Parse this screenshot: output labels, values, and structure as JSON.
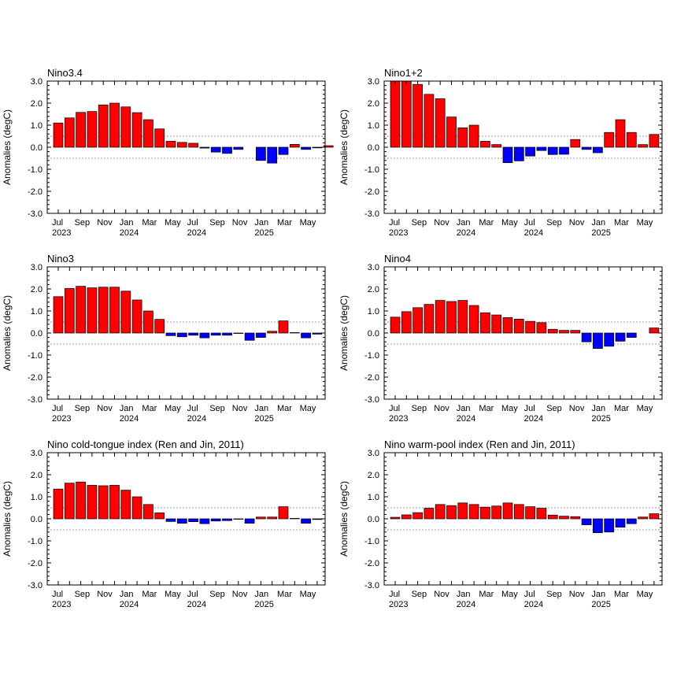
{
  "figure": {
    "background": "#ffffff"
  },
  "colors": {
    "positive": "#ff0000",
    "negative": "#0000ff",
    "threshold_line": "#999999"
  },
  "chart_data": [
    {
      "type": "bar",
      "title": "Nino3.4",
      "ylabel": "Anomalies (degC)",
      "ylim": [
        -3.0,
        3.0
      ],
      "yticks": [
        "3.0",
        "2.0",
        "1.0",
        "0.0",
        "-1.0",
        "-2.0",
        "-3.0"
      ],
      "threshold": [
        0.5,
        -0.5
      ],
      "x_labels": [
        [
          "Jul",
          "2023"
        ],
        [
          "Sep",
          ""
        ],
        [
          "Nov",
          ""
        ],
        [
          "Jan",
          "2024"
        ],
        [
          "Mar",
          ""
        ],
        [
          "May",
          ""
        ],
        [
          "Jul",
          "2024"
        ],
        [
          "Sep",
          ""
        ],
        [
          "Nov",
          ""
        ],
        [
          "Jan",
          "2025"
        ],
        [
          "Mar",
          ""
        ],
        [
          "May",
          ""
        ]
      ],
      "values": [
        1.1,
        1.33,
        1.58,
        1.62,
        1.92,
        2.0,
        1.83,
        1.57,
        1.25,
        0.83,
        0.27,
        0.22,
        0.18,
        -0.04,
        -0.22,
        -0.28,
        -0.1,
        0.0,
        -0.6,
        -0.72,
        -0.33,
        0.13,
        -0.1,
        -0.03,
        0.07
      ]
    },
    {
      "type": "bar",
      "title": "Nino1+2",
      "ylabel": "Anomalies (degC)",
      "ylim": [
        -3.0,
        3.0
      ],
      "yticks": [
        "3.0",
        "2.0",
        "1.0",
        "0.0",
        "-1.0",
        "-2.0",
        "-3.0"
      ],
      "threshold": [
        0.5,
        -0.5
      ],
      "x_labels": [
        [
          "Jul",
          "2023"
        ],
        [
          "Sep",
          ""
        ],
        [
          "Nov",
          ""
        ],
        [
          "Jan",
          "2024"
        ],
        [
          "Mar",
          ""
        ],
        [
          "May",
          ""
        ],
        [
          "Jul",
          "2024"
        ],
        [
          "Sep",
          ""
        ],
        [
          "Nov",
          ""
        ],
        [
          "Jan",
          "2025"
        ],
        [
          "Mar",
          ""
        ],
        [
          "May",
          ""
        ]
      ],
      "values": [
        3.0,
        3.0,
        2.85,
        2.4,
        2.2,
        1.37,
        0.88,
        1.0,
        0.27,
        0.12,
        -0.7,
        -0.62,
        -0.4,
        -0.15,
        -0.33,
        -0.32,
        0.35,
        -0.1,
        -0.25,
        0.67,
        1.25,
        0.67,
        0.12,
        0.58
      ]
    },
    {
      "type": "bar",
      "title": "Nino3",
      "ylabel": "Anomalies (degC)",
      "ylim": [
        -3.0,
        3.0
      ],
      "yticks": [
        "3.0",
        "2.0",
        "1.0",
        "0.0",
        "-1.0",
        "-2.0",
        "-3.0"
      ],
      "threshold": [
        0.5,
        -0.5
      ],
      "x_labels": [
        [
          "Jul",
          "2023"
        ],
        [
          "Sep",
          ""
        ],
        [
          "Nov",
          ""
        ],
        [
          "Jan",
          "2024"
        ],
        [
          "Mar",
          ""
        ],
        [
          "May",
          ""
        ],
        [
          "Jul",
          "2024"
        ],
        [
          "Sep",
          ""
        ],
        [
          "Nov",
          ""
        ],
        [
          "Jan",
          "2025"
        ],
        [
          "Mar",
          ""
        ],
        [
          "May",
          ""
        ]
      ],
      "values": [
        1.65,
        2.02,
        2.12,
        2.05,
        2.08,
        2.08,
        1.9,
        1.5,
        1.0,
        0.62,
        -0.12,
        -0.17,
        -0.1,
        -0.22,
        -0.1,
        -0.1,
        -0.02,
        -0.33,
        -0.2,
        0.08,
        0.55,
        0.02,
        -0.22,
        -0.05
      ]
    },
    {
      "type": "bar",
      "title": "Nino4",
      "ylabel": "Anomalies (degC)",
      "ylim": [
        -3.0,
        3.0
      ],
      "yticks": [
        "3.0",
        "2.0",
        "1.0",
        "0.0",
        "-1.0",
        "-2.0",
        "-3.0"
      ],
      "threshold": [
        0.5,
        -0.5
      ],
      "x_labels": [
        [
          "Jul",
          "2023"
        ],
        [
          "Sep",
          ""
        ],
        [
          "Nov",
          ""
        ],
        [
          "Jan",
          "2024"
        ],
        [
          "Mar",
          ""
        ],
        [
          "May",
          ""
        ],
        [
          "Jul",
          "2024"
        ],
        [
          "Sep",
          ""
        ],
        [
          "Nov",
          ""
        ],
        [
          "Jan",
          "2025"
        ],
        [
          "Mar",
          ""
        ],
        [
          "May",
          ""
        ]
      ],
      "values": [
        0.72,
        0.97,
        1.15,
        1.3,
        1.48,
        1.43,
        1.48,
        1.25,
        0.92,
        0.82,
        0.7,
        0.63,
        0.53,
        0.47,
        0.17,
        0.12,
        0.12,
        -0.4,
        -0.7,
        -0.6,
        -0.37,
        -0.2,
        0.0,
        0.23
      ]
    },
    {
      "type": "bar",
      "title": "Nino cold-tongue index (Ren and Jin, 2011)",
      "ylabel": "Anomalies (degC)",
      "ylim": [
        -3.0,
        3.0
      ],
      "yticks": [
        "3.0",
        "2.0",
        "1.0",
        "0.0",
        "-1.0",
        "-2.0",
        "-3.0"
      ],
      "threshold": [
        0.5,
        -0.5
      ],
      "x_labels": [
        [
          "Jul",
          "2023"
        ],
        [
          "Sep",
          ""
        ],
        [
          "Nov",
          ""
        ],
        [
          "Jan",
          "2024"
        ],
        [
          "Mar",
          ""
        ],
        [
          "May",
          ""
        ],
        [
          "Jul",
          "2024"
        ],
        [
          "Sep",
          ""
        ],
        [
          "Nov",
          ""
        ],
        [
          "Jan",
          "2025"
        ],
        [
          "Mar",
          ""
        ],
        [
          "May",
          ""
        ]
      ],
      "values": [
        1.35,
        1.62,
        1.67,
        1.52,
        1.5,
        1.52,
        1.3,
        1.0,
        0.65,
        0.27,
        -0.12,
        -0.2,
        -0.13,
        -0.22,
        -0.1,
        -0.08,
        -0.02,
        -0.2,
        0.08,
        0.08,
        0.55,
        0.02,
        -0.2,
        -0.03
      ]
    },
    {
      "type": "bar",
      "title": "Nino warm-pool index (Ren and Jin, 2011)",
      "ylabel": "Anomalies (degC)",
      "ylim": [
        -3.0,
        3.0
      ],
      "yticks": [
        "3.0",
        "2.0",
        "1.0",
        "0.0",
        "-1.0",
        "-2.0",
        "-3.0"
      ],
      "threshold": [
        0.5,
        -0.5
      ],
      "x_labels": [
        [
          "Jul",
          "2023"
        ],
        [
          "Sep",
          ""
        ],
        [
          "Nov",
          ""
        ],
        [
          "Jan",
          "2024"
        ],
        [
          "Mar",
          ""
        ],
        [
          "May",
          ""
        ],
        [
          "Jul",
          "2024"
        ],
        [
          "Sep",
          ""
        ],
        [
          "Nov",
          ""
        ],
        [
          "Jan",
          "2025"
        ],
        [
          "Mar",
          ""
        ],
        [
          "May",
          ""
        ]
      ],
      "values": [
        0.07,
        0.18,
        0.28,
        0.48,
        0.65,
        0.6,
        0.72,
        0.65,
        0.53,
        0.58,
        0.72,
        0.65,
        0.55,
        0.48,
        0.17,
        0.12,
        0.1,
        -0.27,
        -0.63,
        -0.6,
        -0.38,
        -0.22,
        0.08,
        0.23
      ]
    }
  ]
}
